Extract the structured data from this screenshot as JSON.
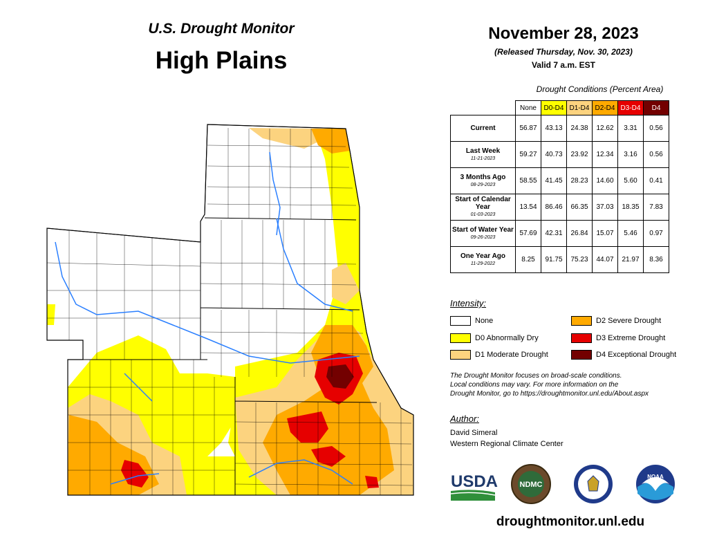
{
  "header": {
    "subtitle": "U.S. Drought Monitor",
    "region": "High Plains",
    "date": "November 28, 2023",
    "released": "(Released Thursday, Nov. 30, 2023)",
    "valid": "Valid 7 a.m. EST"
  },
  "table": {
    "caption": "Drought Conditions (Percent Area)",
    "columns": [
      {
        "label": "None",
        "color": "#ffffff",
        "text_color": "#000000"
      },
      {
        "label": "D0-D4",
        "color": "#ffff00",
        "text_color": "#000000"
      },
      {
        "label": "D1-D4",
        "color": "#fcd37f",
        "text_color": "#000000"
      },
      {
        "label": "D2-D4",
        "color": "#ffaa00",
        "text_color": "#000000"
      },
      {
        "label": "D3-D4",
        "color": "#e60000",
        "text_color": "#ffffff"
      },
      {
        "label": "D4",
        "color": "#730000",
        "text_color": "#ffffff"
      }
    ],
    "rows": [
      {
        "label": "Current",
        "date": "",
        "values": [
          "56.87",
          "43.13",
          "24.38",
          "12.62",
          "3.31",
          "0.56"
        ]
      },
      {
        "label": "Last Week",
        "date": "11-21-2023",
        "values": [
          "59.27",
          "40.73",
          "23.92",
          "12.34",
          "3.16",
          "0.56"
        ]
      },
      {
        "label": "3 Months Ago",
        "date": "08-29-2023",
        "values": [
          "58.55",
          "41.45",
          "28.23",
          "14.60",
          "5.60",
          "0.41"
        ]
      },
      {
        "label": "Start of Calendar Year",
        "date": "01-03-2023",
        "values": [
          "13.54",
          "86.46",
          "66.35",
          "37.03",
          "18.35",
          "7.83"
        ]
      },
      {
        "label": "Start of Water Year",
        "date": "09-26-2023",
        "values": [
          "57.69",
          "42.31",
          "26.84",
          "15.07",
          "5.46",
          "0.97"
        ]
      },
      {
        "label": "One Year Ago",
        "date": "11-29-2022",
        "values": [
          "8.25",
          "91.75",
          "75.23",
          "44.07",
          "21.97",
          "8.36"
        ]
      }
    ]
  },
  "legend": {
    "title": "Intensity:",
    "items": [
      {
        "label": "None",
        "color": "#ffffff"
      },
      {
        "label": "D0 Abnormally Dry",
        "color": "#ffff00"
      },
      {
        "label": "D1 Moderate Drought",
        "color": "#fcd37f"
      },
      {
        "label": "D2 Severe Drought",
        "color": "#ffaa00"
      },
      {
        "label": "D3 Extreme Drought",
        "color": "#e60000"
      },
      {
        "label": "D4 Exceptional Drought",
        "color": "#730000"
      }
    ]
  },
  "note": {
    "line1": "The Drought Monitor focuses on broad-scale conditions.",
    "line2": "Local conditions may vary. For more information on the",
    "line3": "Drought Monitor, go to https://droughtmonitor.unl.edu/About.aspx"
  },
  "author": {
    "title": "Author:",
    "name": "David Simeral",
    "org": "Western Regional Climate Center"
  },
  "logos": {
    "usda": "USDA",
    "ndmc": "NDMC",
    "noaa": "NOAA"
  },
  "footer": {
    "url": "droughtmonitor.unl.edu"
  }
}
